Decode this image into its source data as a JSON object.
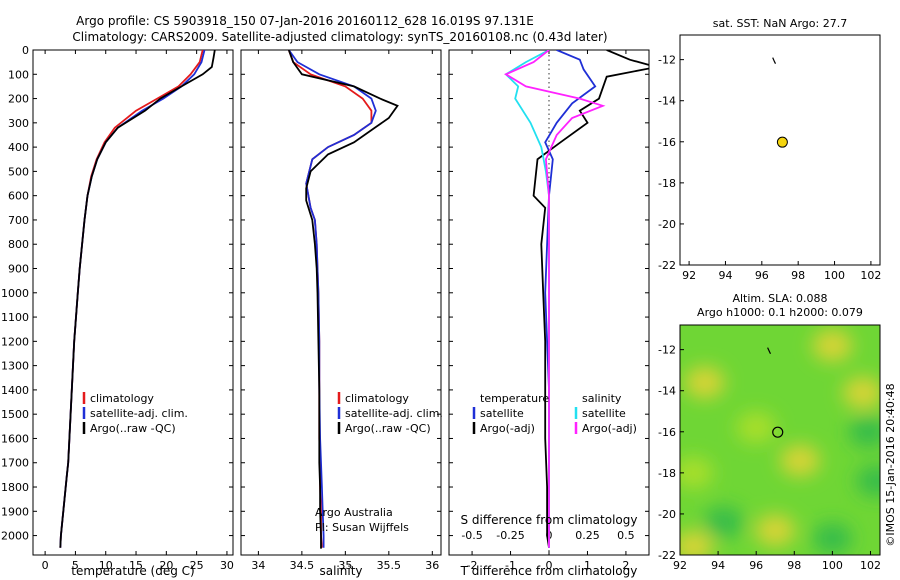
{
  "title_line1": "Argo profile: CS 5903918_150 07-Jan-2016 20160112_628 16.019S 97.131E",
  "title_line2": "Climatology: CARS2009. Satellite-adjusted climatology: synTS_20160108.nc (0.43d later)",
  "colors": {
    "climatology": "#e41a1c",
    "satellite": "#1f2fd6",
    "argo": "#000000",
    "satellite_salinity": "#22e0f0",
    "argo_adj_salinity": "#ff22ff",
    "float_marker": "#f5d50f",
    "sla_base": "#6fd635"
  },
  "chart_data": [
    {
      "type": "line",
      "name": "temperature-profile",
      "xlabel": "temperature (deg C)",
      "ylabel": "",
      "xlim": [
        -2,
        31
      ],
      "ylim": [
        2080,
        0
      ],
      "xticks": [
        0,
        5,
        10,
        15,
        20,
        25,
        30
      ],
      "yticks": [
        0,
        100,
        200,
        300,
        400,
        500,
        600,
        700,
        800,
        900,
        1000,
        1100,
        1200,
        1300,
        1400,
        1500,
        1600,
        1700,
        1800,
        1900,
        2000
      ],
      "legend": [
        "climatology",
        "satellite-adj. clim.",
        "Argo(..raw -QC)"
      ],
      "series": [
        {
          "name": "climatology",
          "color_key": "climatology",
          "x": [
            26.0,
            25.5,
            24.0,
            22.0,
            18.5,
            15.0,
            11.5,
            9.8,
            8.5,
            7.6,
            7.0,
            6.5,
            6.1,
            5.7,
            5.4,
            5.1,
            4.8,
            4.6,
            4.4,
            4.2,
            4.0,
            3.8,
            3.6,
            3.4,
            3.2,
            3.0,
            2.8,
            2.6,
            2.5
          ],
          "y": [
            0,
            50,
            100,
            150,
            200,
            250,
            320,
            380,
            450,
            520,
            600,
            700,
            800,
            900,
            1000,
            1100,
            1200,
            1300,
            1400,
            1500,
            1600,
            1700,
            1750,
            1800,
            1850,
            1900,
            1950,
            2000,
            2050
          ]
        },
        {
          "name": "satellite-adj. clim.",
          "color_key": "satellite",
          "x": [
            26.3,
            25.8,
            24.6,
            22.5,
            19.5,
            16.0,
            12.0,
            10.0,
            8.6,
            7.7,
            7.0,
            6.5,
            6.1,
            5.7,
            5.4,
            5.1,
            4.8,
            4.6,
            4.4,
            4.2,
            4.0,
            3.8,
            3.6,
            3.4,
            3.2,
            3.0,
            2.8,
            2.6,
            2.5
          ],
          "y": [
            0,
            50,
            100,
            150,
            200,
            250,
            320,
            380,
            450,
            520,
            600,
            700,
            800,
            900,
            1000,
            1100,
            1200,
            1300,
            1400,
            1500,
            1600,
            1700,
            1750,
            1800,
            1850,
            1900,
            1950,
            2000,
            2050
          ]
        },
        {
          "name": "Argo(..raw -QC)",
          "color_key": "argo",
          "x": [
            28.0,
            27.8,
            27.5,
            26.0,
            22.5,
            19.0,
            16.5,
            12.0,
            10.0,
            8.6,
            7.7,
            7.0,
            6.5,
            6.1,
            5.7,
            5.4,
            5.1,
            4.8,
            4.6,
            4.4,
            4.2,
            4.0,
            3.8,
            3.6,
            3.4,
            3.2,
            3.0,
            2.8,
            2.6,
            2.5
          ],
          "y": [
            0,
            30,
            70,
            100,
            150,
            200,
            250,
            320,
            380,
            450,
            520,
            600,
            700,
            800,
            900,
            1000,
            1100,
            1200,
            1300,
            1400,
            1500,
            1600,
            1700,
            1750,
            1800,
            1850,
            1900,
            1950,
            2000,
            2050
          ]
        }
      ]
    },
    {
      "type": "line",
      "name": "salinity-profile",
      "xlabel": "salinity",
      "xlim": [
        33.8,
        36.1
      ],
      "ylim": [
        2080,
        0
      ],
      "xticks": [
        34,
        34.5,
        35,
        35.5,
        36
      ],
      "legend": [
        "climatology",
        "satellite-adj. clim.",
        "Argo(..raw -QC)"
      ],
      "annotation": [
        "Argo Australia",
        "PI: Susan Wijffels"
      ],
      "series": [
        {
          "name": "climatology",
          "color_key": "climatology",
          "x": [
            34.35,
            34.4,
            34.6,
            35.0,
            35.2,
            35.3,
            35.3,
            35.1,
            34.8,
            34.62,
            34.55,
            34.6,
            34.65,
            34.67,
            34.68,
            34.69,
            34.7,
            34.7,
            34.7,
            34.71,
            34.71,
            34.72,
            34.72,
            34.73
          ],
          "y": [
            0,
            50,
            100,
            150,
            200,
            250,
            300,
            350,
            400,
            450,
            550,
            650,
            700,
            800,
            900,
            1000,
            1200,
            1400,
            1600,
            1700,
            1800,
            1900,
            2000,
            2050
          ]
        },
        {
          "name": "satellite-adj. clim.",
          "color_key": "satellite",
          "x": [
            34.35,
            34.45,
            34.7,
            35.1,
            35.3,
            35.35,
            35.3,
            35.1,
            34.8,
            34.62,
            34.55,
            34.6,
            34.65,
            34.67,
            34.68,
            34.69,
            34.7,
            34.7,
            34.71,
            34.72,
            34.73,
            34.74,
            34.75,
            34.75
          ],
          "y": [
            0,
            50,
            100,
            150,
            200,
            250,
            300,
            350,
            400,
            450,
            550,
            650,
            700,
            800,
            900,
            1000,
            1200,
            1400,
            1600,
            1700,
            1800,
            1900,
            2000,
            2050
          ]
        },
        {
          "name": "Argo(..raw -QC)",
          "color_key": "argo",
          "x": [
            34.35,
            34.4,
            34.5,
            35.1,
            35.4,
            35.6,
            35.5,
            35.3,
            35.1,
            34.8,
            34.6,
            34.55,
            34.55,
            34.62,
            34.65,
            34.67,
            34.68,
            34.69,
            34.7,
            34.7,
            34.7,
            34.71,
            34.71,
            34.72,
            34.72,
            34.73
          ],
          "y": [
            0,
            50,
            100,
            150,
            200,
            230,
            280,
            330,
            380,
            430,
            500,
            570,
            620,
            700,
            800,
            900,
            1000,
            1200,
            1400,
            1600,
            1700,
            1800,
            1900,
            2000,
            2050,
            2050
          ]
        }
      ]
    },
    {
      "type": "line",
      "name": "difference-profile",
      "xlabel": "T difference from climatology",
      "x2label": "S difference from climatology",
      "xlim": [
        -2.6,
        2.6
      ],
      "x2lim": [
        -0.65,
        0.65
      ],
      "ylim": [
        2080,
        0
      ],
      "xticks": [
        -2,
        -1,
        0,
        1,
        2
      ],
      "x2ticks": [
        -0.5,
        -0.25,
        0,
        0.25,
        0.5
      ],
      "x2ticklabels": [
        "-0.5",
        "-0.25",
        "0",
        "0.25",
        "0.5"
      ],
      "legend_temperature": {
        "title": "temperature",
        "entries": [
          "satellite",
          "Argo(-adj)"
        ]
      },
      "legend_salinity": {
        "title": "salinity",
        "entries": [
          "satellite",
          "Argo(-adj)"
        ]
      },
      "series": [
        {
          "name": "temperature satellite",
          "axis": "x",
          "color_key": "satellite",
          "x": [
            0.2,
            0.8,
            0.9,
            1.2,
            0.6,
            0.2,
            -0.1,
            0.1,
            0.0,
            -0.05,
            -0.1,
            -0.05,
            0.0,
            0.0,
            0.0,
            0.0,
            0.0
          ],
          "y": [
            0,
            40,
            80,
            150,
            220,
            300,
            380,
            450,
            600,
            800,
            1000,
            1200,
            1400,
            1600,
            1800,
            2000,
            2050
          ]
        },
        {
          "name": "temperature Argo(-adj)",
          "axis": "x",
          "color_key": "argo",
          "x": [
            1.5,
            2.1,
            2.8,
            1.5,
            1.3,
            0.8,
            1.0,
            0.3,
            -0.3,
            -0.4,
            -0.1,
            -0.2,
            -0.15,
            -0.1,
            -0.1,
            -0.1,
            -0.05,
            -0.05,
            -0.05,
            0.0
          ],
          "y": [
            0,
            40,
            70,
            110,
            200,
            250,
            300,
            380,
            450,
            600,
            650,
            800,
            1000,
            1200,
            1400,
            1600,
            1800,
            1900,
            2000,
            2050
          ]
        },
        {
          "name": "salinity satellite",
          "axis": "x2",
          "color_key": "satellite_salinity",
          "x": [
            0.0,
            -0.15,
            -0.28,
            -0.2,
            -0.22,
            -0.12,
            -0.05,
            -0.02,
            0.0,
            0.0,
            0.0,
            0.0,
            0.0,
            0.0
          ],
          "y": [
            0,
            50,
            100,
            150,
            200,
            300,
            400,
            500,
            600,
            800,
            1000,
            1400,
            1800,
            2050
          ]
        },
        {
          "name": "salinity Argo(-adj)",
          "axis": "x2",
          "color_key": "argo_adj_salinity",
          "x": [
            0.0,
            -0.1,
            -0.28,
            -0.15,
            0.2,
            0.35,
            0.15,
            0.05,
            -0.02,
            0.0,
            0.0,
            0.0,
            0.0,
            0.0
          ],
          "y": [
            0,
            50,
            100,
            150,
            200,
            230,
            280,
            350,
            450,
            600,
            800,
            1200,
            1600,
            2050
          ]
        }
      ]
    },
    {
      "type": "scatter",
      "name": "sst-map",
      "title": "sat. SST: NaN Argo: 27.7",
      "xlim": [
        91.5,
        102.5
      ],
      "ylim": [
        -22,
        -10.8
      ],
      "xticks": [
        92,
        94,
        96,
        98,
        100,
        102
      ],
      "yticks": [
        -22,
        -20,
        -18,
        -16,
        -14,
        -12
      ],
      "float_position": {
        "lon": 97.131,
        "lat": -16.019
      },
      "track": [
        {
          "lon": 96.6,
          "lat": -11.9
        },
        {
          "lon": 96.7,
          "lat": -12.1
        },
        {
          "lon": 96.75,
          "lat": -12.2
        }
      ]
    },
    {
      "type": "heatmap",
      "name": "sla-map",
      "title_line1": "Altim. SLA: 0.088",
      "title_line2": "Argo h1000: 0.1 h2000: 0.079",
      "xlim": [
        92,
        102.5
      ],
      "ylim": [
        -22,
        -10.8
      ],
      "xticks": [
        92,
        94,
        96,
        98,
        100,
        102
      ],
      "yticks": [
        -22,
        -20,
        -18,
        -16,
        -14,
        -12
      ],
      "float_position": {
        "lon": 97.131,
        "lat": -16.019
      },
      "track": [
        {
          "lon": 96.6,
          "lat": -11.9
        },
        {
          "lon": 96.7,
          "lat": -12.1
        },
        {
          "lon": 96.75,
          "lat": -12.2
        }
      ],
      "features": [
        {
          "lon": 100.0,
          "lat": -11.8,
          "kind": "high"
        },
        {
          "lon": 93.3,
          "lat": -13.6,
          "kind": "high"
        },
        {
          "lon": 96.0,
          "lat": -15.8,
          "kind": "mid"
        },
        {
          "lon": 98.3,
          "lat": -17.4,
          "kind": "high"
        },
        {
          "lon": 92.7,
          "lat": -18.0,
          "kind": "mid"
        },
        {
          "lon": 97.0,
          "lat": -20.8,
          "kind": "high"
        },
        {
          "lon": 101.6,
          "lat": -14.1,
          "kind": "high"
        },
        {
          "lon": 102.3,
          "lat": -18.4,
          "kind": "low"
        },
        {
          "lon": 101.9,
          "lat": -16.0,
          "kind": "low"
        },
        {
          "lon": 94.3,
          "lat": -20.4,
          "kind": "low"
        },
        {
          "lon": 92.7,
          "lat": -21.6,
          "kind": "high"
        },
        {
          "lon": 100.0,
          "lat": -21.2,
          "kind": "low"
        }
      ]
    }
  ],
  "watermark": "©IMOS 15-Jan-2016 20:40:48"
}
